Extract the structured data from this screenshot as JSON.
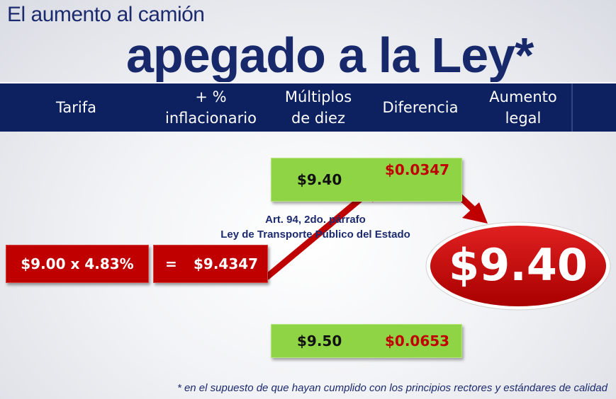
{
  "title": {
    "line1": "El aumento al camión",
    "line2": "apegado a la Ley*"
  },
  "header": {
    "columns": [
      "Tarifa",
      "+ %\ninflacionario",
      "Múltiplos\nde diez",
      "Diferencia",
      "Aumento\nlegal"
    ]
  },
  "calculation": {
    "base": "$9.00 x 4.83%",
    "equals": "=",
    "result": "$9.4347"
  },
  "options": {
    "lower": {
      "multiple": "$9.40",
      "difference": "$0.0347"
    },
    "upper": {
      "multiple": "$9.50",
      "difference": "$0.0653"
    }
  },
  "legal_reference": {
    "line1": "Art. 94, 2do. párrafo",
    "line2": "Ley de Transporte Público del Estado"
  },
  "final_fare": "$9.40",
  "footnote": "* en el supuesto de que hayan cumplido con los principios rectores y estándares de calidad",
  "colors": {
    "navy": "#0d2161",
    "red": "#c00000",
    "green": "#8fd444"
  }
}
